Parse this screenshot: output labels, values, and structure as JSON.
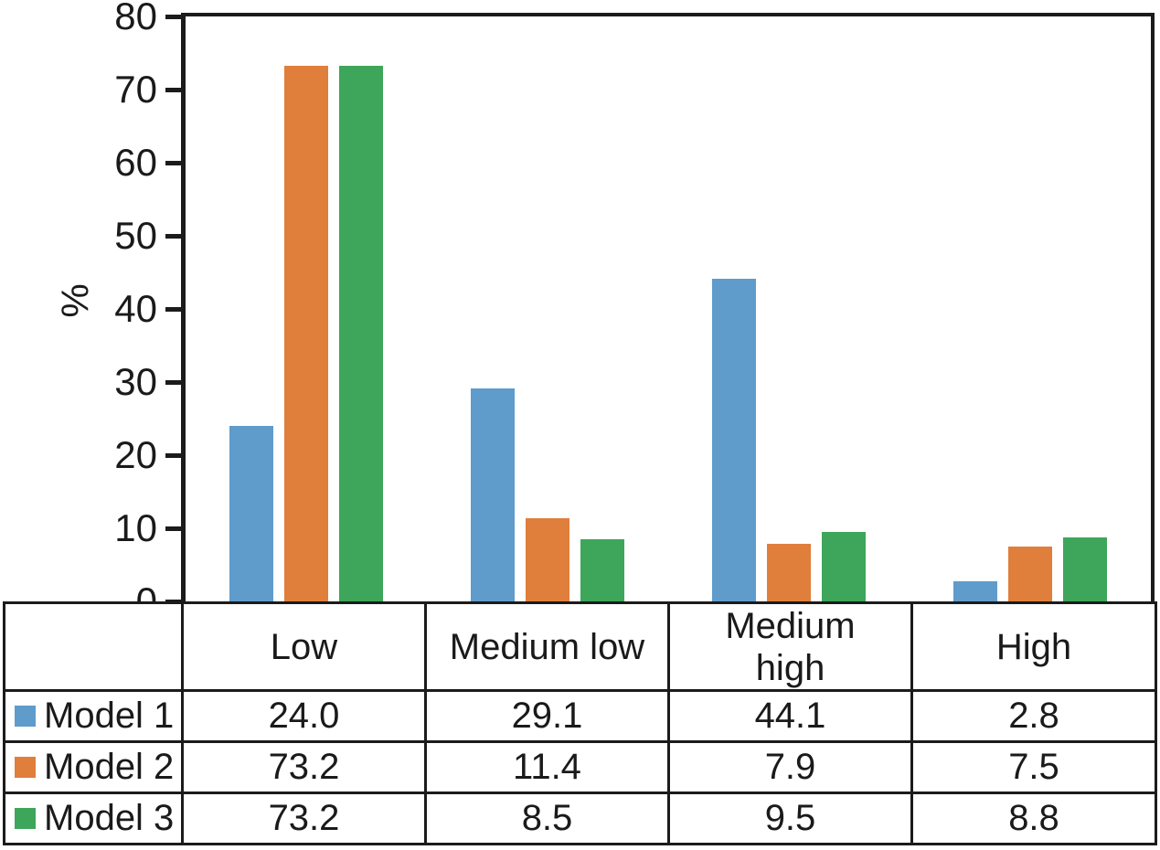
{
  "chart_data": {
    "type": "bar",
    "title": "",
    "xlabel": "",
    "ylabel": "%",
    "ylim": [
      0,
      80
    ],
    "yticks": [
      0,
      10,
      20,
      30,
      40,
      50,
      60,
      70,
      80
    ],
    "grid": false,
    "legend_position": "table-left",
    "categories": [
      "Low",
      "Medium low",
      "Medium high",
      "High"
    ],
    "categories_display": [
      "Low",
      "Medium low",
      "Medium\nhigh",
      "High"
    ],
    "series": [
      {
        "name": "Model 1",
        "color": "#5f9bcb",
        "values": [
          24.0,
          29.1,
          44.1,
          2.8
        ]
      },
      {
        "name": "Model 2",
        "color": "#e07e3c",
        "values": [
          73.2,
          11.4,
          7.9,
          7.5
        ]
      },
      {
        "name": "Model 3",
        "color": "#3da65a",
        "values": [
          73.2,
          8.5,
          9.5,
          8.8
        ]
      }
    ],
    "value_decimals": 1,
    "axis_color": "#1b1b1b",
    "text_color": "#1a1a1a"
  }
}
